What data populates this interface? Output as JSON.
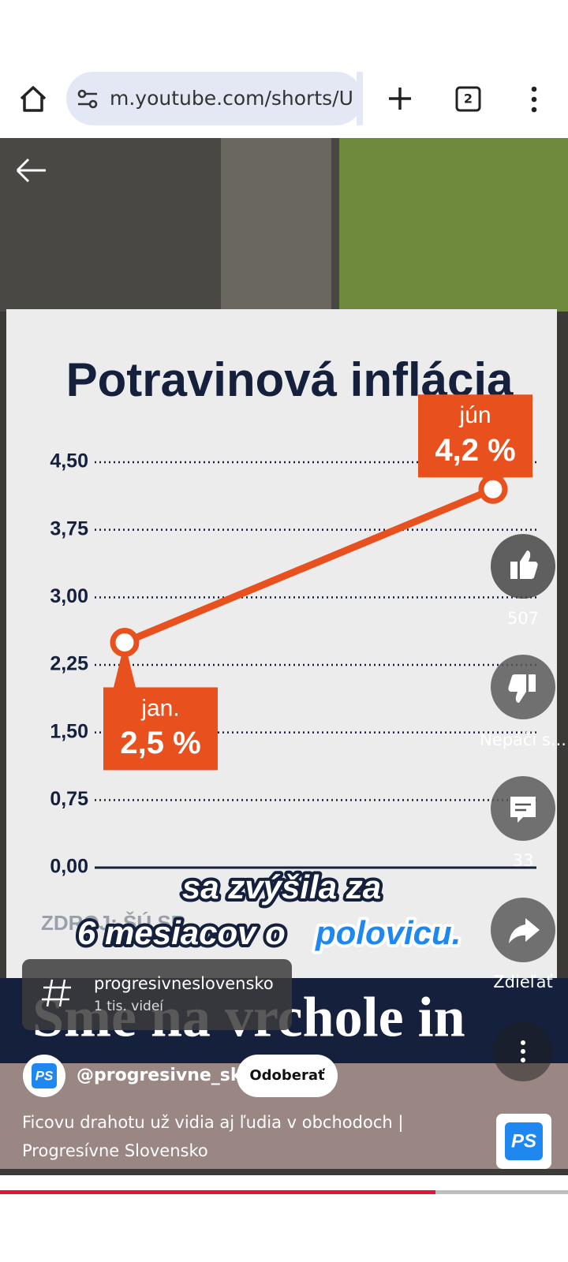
{
  "browser": {
    "url": "m.youtube.com/shorts/U",
    "tab_count": "2"
  },
  "chart_data": {
    "type": "line",
    "title": "Potravinová inflácia",
    "categories": [
      "jan.",
      "jún"
    ],
    "values": [
      2.5,
      4.2
    ],
    "value_labels": [
      "2,5 %",
      "4,2 %"
    ],
    "color": "#e8501e",
    "ylim": [
      0,
      4.5
    ],
    "yticks": [
      {
        "value": 0,
        "label": "0,00"
      },
      {
        "value": 0.75,
        "label": "0,75"
      },
      {
        "value": 1.5,
        "label": "1,50"
      },
      {
        "value": 2.25,
        "label": "2,25"
      },
      {
        "value": 3,
        "label": "3,00"
      },
      {
        "value": 3.75,
        "label": "3,75"
      },
      {
        "value": 4.5,
        "label": "4,50"
      }
    ],
    "grid": true,
    "source": "ZDROJ: ŠÚ SR"
  },
  "video": {
    "caption": [
      "sa zvýšila za",
      "6 mesiacov o",
      "polovicu."
    ],
    "banner": "Sme na vrchole in"
  },
  "actions": {
    "likes": "507",
    "dislike": "Nepáči s...",
    "comments": "33",
    "share": "Zdieľať"
  },
  "hashtag": {
    "name": "progresivneslovensko",
    "count": "1 tis. videí"
  },
  "channel": {
    "handle": "@progresivne_sk",
    "subscribe": "Odoberať",
    "logo": "PS"
  },
  "title": [
    "Ficovu drahotu už vidia aj ľudia v obchodoch |",
    "Progresívne Slovensko"
  ]
}
